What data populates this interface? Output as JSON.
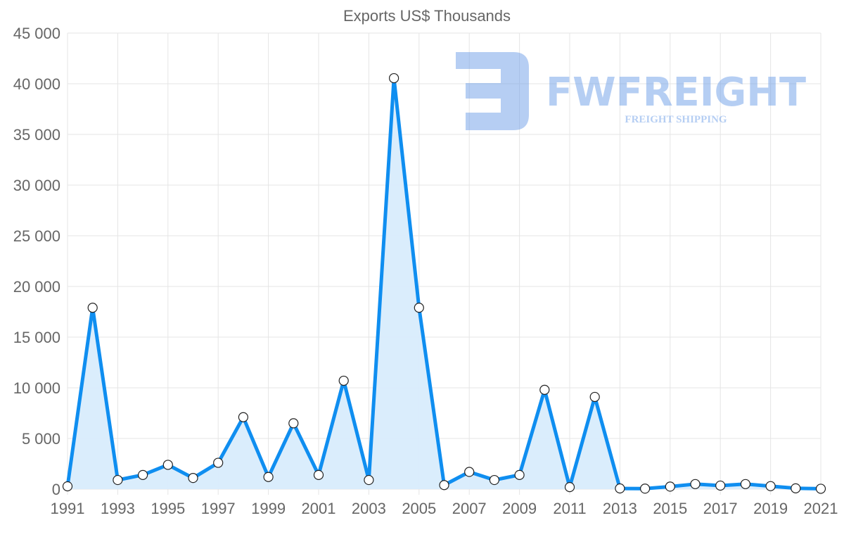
{
  "chart_data": {
    "type": "area",
    "title": "Exports US$ Thousands",
    "xlabel": "",
    "ylabel": "",
    "ylim": [
      0,
      45000
    ],
    "y_ticks": [
      "0",
      "5 000",
      "10 000",
      "15 000",
      "20 000",
      "25 000",
      "30 000",
      "35 000",
      "40 000",
      "45 000"
    ],
    "x_ticks": [
      "1991",
      "1993",
      "1995",
      "1997",
      "1999",
      "2001",
      "2003",
      "2005",
      "2007",
      "2009",
      "2011",
      "2013",
      "2015",
      "2017",
      "2019",
      "2021"
    ],
    "grid": true,
    "x": [
      1991,
      1992,
      1993,
      1994,
      1995,
      1996,
      1997,
      1998,
      1999,
      2000,
      2001,
      2002,
      2003,
      2004,
      2005,
      2006,
      2007,
      2008,
      2009,
      2010,
      2011,
      2012,
      2013,
      2014,
      2015,
      2016,
      2017,
      2018,
      2019,
      2020,
      2021
    ],
    "series": [
      {
        "name": "Exports US$ Thousands",
        "values": [
          280,
          17900,
          900,
          1400,
          2400,
          1100,
          2600,
          7100,
          1200,
          6500,
          1400,
          10700,
          900,
          40550,
          17900,
          400,
          1700,
          900,
          1400,
          9800,
          200,
          9100,
          70,
          50,
          250,
          500,
          350,
          500,
          300,
          80,
          40
        ]
      }
    ],
    "colors": {
      "line": "#0f8ef0",
      "fill": "#d8ecfc",
      "grid": "#e5e5e5"
    }
  },
  "watermark": {
    "brand": "FWFREIGHT",
    "tagline": "FREIGHT SHIPPING"
  }
}
